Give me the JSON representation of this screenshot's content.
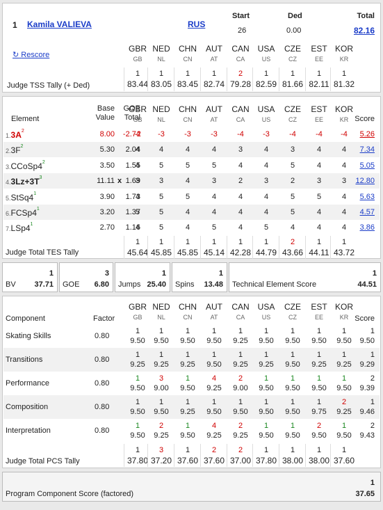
{
  "header": {
    "rank": "1",
    "skater": "Kamila VALIEVA",
    "nation": "RUS",
    "start_label": "Start",
    "start_value": "26",
    "ded_label": "Ded",
    "ded_value": "0.00",
    "total_label": "Total",
    "total_value": "82.16",
    "rescore": "Rescore",
    "judges": [
      {
        "code": "GBR",
        "sub": "GB"
      },
      {
        "code": "NED",
        "sub": "NL"
      },
      {
        "code": "CHN",
        "sub": "CN"
      },
      {
        "code": "AUT",
        "sub": "AT"
      },
      {
        "code": "CAN",
        "sub": "CA"
      },
      {
        "code": "USA",
        "sub": "US"
      },
      {
        "code": "CZE",
        "sub": "CZ"
      },
      {
        "code": "EST",
        "sub": "EE"
      },
      {
        "code": "KOR",
        "sub": "KR"
      }
    ],
    "tss_label": "Judge TSS Tally (+ Ded)",
    "tss_ranks": [
      "1",
      "1",
      "1",
      "1",
      "2",
      "1",
      "1",
      "1",
      "1"
    ],
    "tss_values": [
      "83.44",
      "83.05",
      "83.45",
      "82.74",
      "79.28",
      "82.59",
      "81.66",
      "82.11",
      "81.32"
    ]
  },
  "elements": {
    "col_element": "Element",
    "col_base": "Base",
    "col_base2": "Value",
    "col_goe": "GOE",
    "col_goe2": "Total",
    "col_score": "Score",
    "rows": [
      {
        "num": "1.",
        "name": "3A",
        "sup": "2",
        "base": "8.00",
        "x": "",
        "goe": "-2.74",
        "marks": [
          "-2",
          "-3",
          "-3",
          "-3",
          "-4",
          "-3",
          "-4",
          "-4",
          "-4"
        ],
        "score": "5.26",
        "red": true
      },
      {
        "num": "2.",
        "name": "3F",
        "sup": "2",
        "base": "5.30",
        "x": "",
        "goe": "2.04",
        "marks": [
          "4",
          "4",
          "4",
          "4",
          "3",
          "4",
          "3",
          "4",
          "4"
        ],
        "score": "7.34",
        "red": false
      },
      {
        "num": "3.",
        "name": "CCoSp4",
        "sup": "2",
        "base": "3.50",
        "x": "",
        "goe": "1.55",
        "marks": [
          "4",
          "5",
          "5",
          "5",
          "4",
          "4",
          "5",
          "4",
          "4"
        ],
        "score": "5.05",
        "red": false
      },
      {
        "num": "4.",
        "name": "3Lz+3T",
        "sup": "3",
        "base": "11.11",
        "x": "x",
        "goe": "1.69",
        "marks": [
          "3",
          "3",
          "4",
          "3",
          "2",
          "3",
          "2",
          "3",
          "3"
        ],
        "score": "12.80",
        "red": false
      },
      {
        "num": "5.",
        "name": "StSq4",
        "sup": "1",
        "base": "3.90",
        "x": "",
        "goe": "1.73",
        "marks": [
          "4",
          "5",
          "5",
          "4",
          "4",
          "4",
          "5",
          "5",
          "4"
        ],
        "score": "5.63",
        "red": false
      },
      {
        "num": "6.",
        "name": "FCSp4",
        "sup": "1",
        "base": "3.20",
        "x": "",
        "goe": "1.37",
        "marks": [
          "5",
          "5",
          "4",
          "4",
          "4",
          "4",
          "5",
          "4",
          "4"
        ],
        "score": "4.57",
        "red": false
      },
      {
        "num": "7.",
        "name": "LSp4",
        "sup": "1",
        "base": "2.70",
        "x": "",
        "goe": "1.16",
        "marks": [
          "4",
          "5",
          "4",
          "5",
          "4",
          "5",
          "4",
          "4",
          "4"
        ],
        "score": "3.86",
        "red": false
      }
    ],
    "tes_label": "Judge Total TES Tally",
    "tes_ranks": [
      "1",
      "1",
      "1",
      "1",
      "1",
      "1",
      "2",
      "1",
      "1"
    ],
    "tes_values": [
      "45.64",
      "45.85",
      "45.85",
      "45.14",
      "42.28",
      "44.79",
      "43.66",
      "44.11",
      "43.72"
    ]
  },
  "summary": {
    "bv_label": "BV",
    "bv_rank": "1",
    "bv_value": "37.71",
    "goe_label": "GOE",
    "goe_rank": "3",
    "goe_value": "6.80",
    "jumps_label": "Jumps",
    "jumps_rank": "1",
    "jumps_value": "25.40",
    "spins_label": "Spins",
    "spins_rank": "1",
    "spins_value": "13.48",
    "tes_label": "Technical Element Score",
    "tes_rank": "1",
    "tes_value": "44.51"
  },
  "components": {
    "col_component": "Component",
    "col_factor": "Factor",
    "col_score": "Score",
    "rows": [
      {
        "name": "Skating Skills",
        "factor": "0.80",
        "ranks": [
          "1",
          "1",
          "1",
          "1",
          "1",
          "1",
          "1",
          "1",
          "1"
        ],
        "marks": [
          "9.50",
          "9.50",
          "9.50",
          "9.50",
          "9.25",
          "9.50",
          "9.50",
          "9.50",
          "9.50"
        ],
        "score_rank": "1",
        "score": "9.50"
      },
      {
        "name": "Transitions",
        "factor": "0.80",
        "ranks": [
          "1",
          "1",
          "1",
          "1",
          "1",
          "1",
          "1",
          "1",
          "1"
        ],
        "marks": [
          "9.25",
          "9.25",
          "9.25",
          "9.50",
          "9.25",
          "9.25",
          "9.50",
          "9.25",
          "9.25"
        ],
        "score_rank": "1",
        "score": "9.29"
      },
      {
        "name": "Performance",
        "factor": "0.80",
        "ranks": [
          "1",
          "3",
          "1",
          "4",
          "2",
          "1",
          "1",
          "1",
          "1"
        ],
        "marks": [
          "9.50",
          "9.00",
          "9.50",
          "9.25",
          "9.00",
          "9.50",
          "9.50",
          "9.50",
          "9.50"
        ],
        "score_rank": "2",
        "score": "9.39"
      },
      {
        "name": "Composition",
        "factor": "0.80",
        "ranks": [
          "1",
          "1",
          "1",
          "1",
          "1",
          "1",
          "1",
          "1",
          "2"
        ],
        "marks": [
          "9.50",
          "9.50",
          "9.25",
          "9.50",
          "9.50",
          "9.50",
          "9.50",
          "9.75",
          "9.25"
        ],
        "score_rank": "1",
        "score": "9.46"
      },
      {
        "name": "Interpretation",
        "factor": "0.80",
        "ranks": [
          "1",
          "2",
          "1",
          "4",
          "2",
          "1",
          "1",
          "2",
          "1"
        ],
        "marks": [
          "9.50",
          "9.25",
          "9.50",
          "9.25",
          "9.25",
          "9.50",
          "9.50",
          "9.50",
          "9.50"
        ],
        "score_rank": "2",
        "score": "9.43"
      }
    ],
    "pcs_label": "Judge Total PCS Tally",
    "pcs_ranks": [
      "1",
      "3",
      "1",
      "2",
      "2",
      "1",
      "1",
      "1",
      "1"
    ],
    "pcs_values": [
      "37.80",
      "37.20",
      "37.60",
      "37.60",
      "37.00",
      "37.80",
      "38.00",
      "38.00",
      "37.60"
    ]
  },
  "pcs_total": {
    "label": "Program Component Score (factored)",
    "rank": "1",
    "value": "37.65"
  },
  "colors": {
    "red": "#d00000",
    "green": "#19871f",
    "link": "#1a3cc8"
  }
}
